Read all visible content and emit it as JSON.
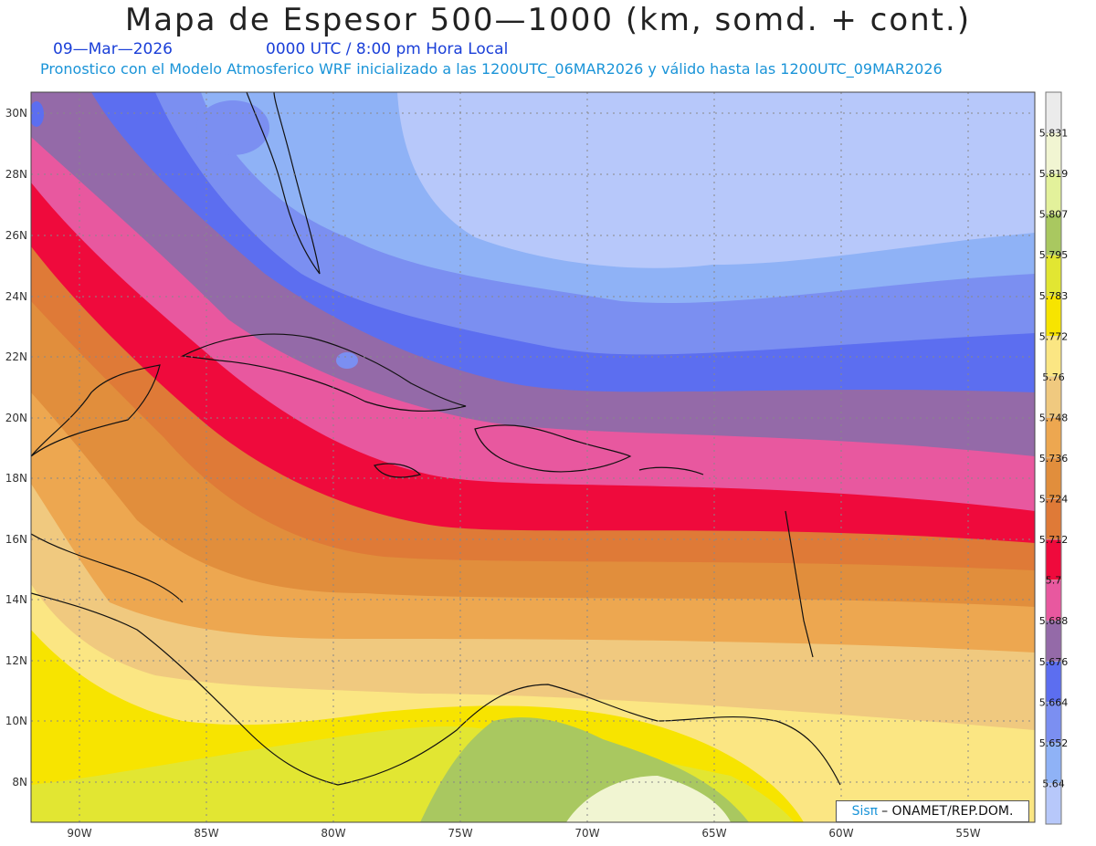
{
  "title": "Mapa de Espesor 500—1000 (km, somd. + cont.)",
  "date": "09—Mar—2026",
  "time_label": "0000 UTC / 8:00 pm Hora Local",
  "model_info": "Pronostico con el Modelo Atmosferico WRF inicializado a las 1200UTC_06MAR2026 y válido hasta las  1200UTC_09MAR2026",
  "credit": {
    "brand": "Sisπ",
    "text": "– ONAMET/REP.DOM."
  },
  "lat_labels": [
    "30N",
    "28N",
    "26N",
    "24N",
    "22N",
    "20N",
    "18N",
    "16N",
    "14N",
    "12N",
    "10N",
    "8N"
  ],
  "lon_labels": [
    "90W",
    "85W",
    "80W",
    "75W",
    "70W",
    "65W",
    "60W",
    "55W"
  ],
  "legend": {
    "values": [
      "5.831",
      "5.819",
      "5.807",
      "5.795",
      "5.783",
      "5.772",
      "5.76",
      "5.748",
      "5.736",
      "5.724",
      "5.712",
      "5.7",
      "5.688",
      "5.676",
      "5.664",
      "5.652",
      "5.64"
    ],
    "colors": [
      "#ebebeb",
      "#f1f5d2",
      "#e3f19b",
      "#a9c860",
      "#e2e632",
      "#f7e400",
      "#fbe683",
      "#f0c97f",
      "#eda750",
      "#e18e3c",
      "#df7a37",
      "#ef0a3c",
      "#e8589f",
      "#946aa8",
      "#5c6ef0",
      "#7b8ff1",
      "#8fb2f6",
      "#b7c8fa"
    ]
  }
}
